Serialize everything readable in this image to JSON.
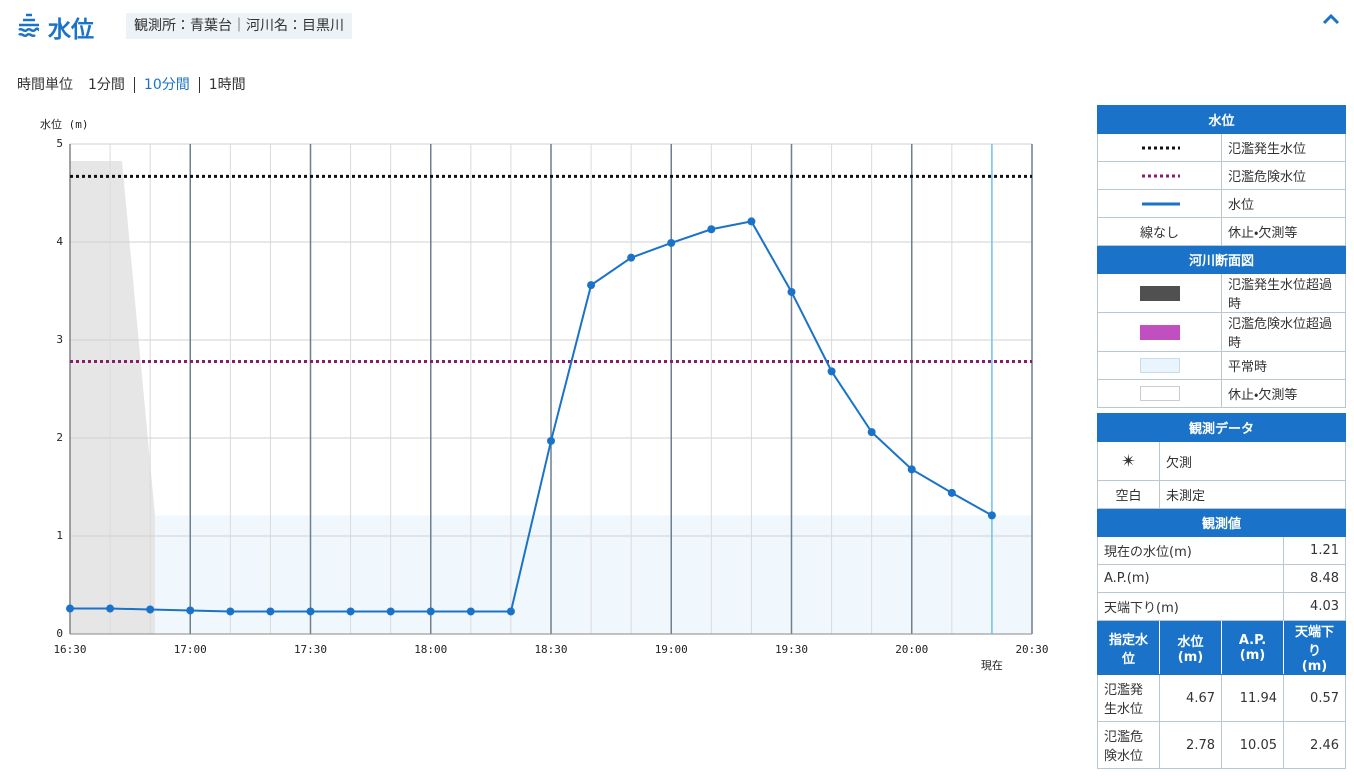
{
  "header": {
    "title": "水位",
    "station": "観測所：青葉台｜河川名：目黒川"
  },
  "time_unit": {
    "label": "時間単位",
    "options": [
      {
        "label": "1分間",
        "active": false
      },
      {
        "label": "10分間",
        "active": true
      },
      {
        "label": "1時間",
        "active": false
      }
    ]
  },
  "chart_data": {
    "type": "line",
    "y_label": "水位 (m)",
    "current_label": "現在",
    "categories": [
      "16:30",
      null,
      null,
      "17:00",
      null,
      null,
      "17:30",
      null,
      null,
      "18:00",
      null,
      null,
      "18:30",
      null,
      null,
      "19:00",
      null,
      null,
      "19:30",
      null,
      null,
      "20:00",
      null,
      null,
      "20:30"
    ],
    "series": [
      {
        "name": "水位",
        "color": "#1a73c8",
        "values": [
          0.26,
          0.26,
          0.25,
          0.24,
          0.23,
          0.23,
          0.23,
          0.23,
          0.23,
          0.23,
          0.23,
          0.23,
          1.97,
          3.56,
          3.84,
          3.99,
          4.13,
          4.21,
          3.49,
          2.68,
          2.06,
          1.68,
          1.44,
          1.21,
          null
        ]
      }
    ],
    "reference_lines": [
      {
        "name": "氾濫発生水位",
        "value": 4.67,
        "color": "#111111"
      },
      {
        "name": "氾濫危険水位",
        "value": 2.78,
        "color": "#8b1a6b"
      }
    ],
    "ylim": [
      0,
      5
    ],
    "yticks": [
      0,
      1,
      2,
      3,
      4,
      5
    ],
    "grid": true
  },
  "legend_water": {
    "title": "水位",
    "no_line": "線なし",
    "no_line_label": "休止・欠測等"
  },
  "legend_section": {
    "title": "河川断面図",
    "rows": [
      "氾濫発生水位超過時",
      "氾濫危険水位超過時",
      "平常時",
      "休止・欠測等"
    ]
  },
  "observation_data": {
    "title": "観測データ",
    "rows": [
      {
        "key": "✴",
        "label": "欠測"
      },
      {
        "key": "空白",
        "label": "未測定"
      }
    ]
  },
  "observed_values": {
    "title": "観測値",
    "rows": [
      {
        "label": "現在の水位(m)",
        "value": 1.21
      },
      {
        "label": "A.P.(m)",
        "value": 8.48
      },
      {
        "label": "天端下り(m)",
        "value": 4.03
      }
    ]
  },
  "designated": {
    "header": [
      "指定水位",
      "水位\n(m)",
      "A.P.\n(m)",
      "天端下り\n(m)"
    ],
    "rows": [
      [
        "氾濫発生水位",
        4.67,
        11.94,
        0.57
      ],
      [
        "氾濫危険水位",
        2.78,
        10.05,
        2.46
      ]
    ]
  }
}
